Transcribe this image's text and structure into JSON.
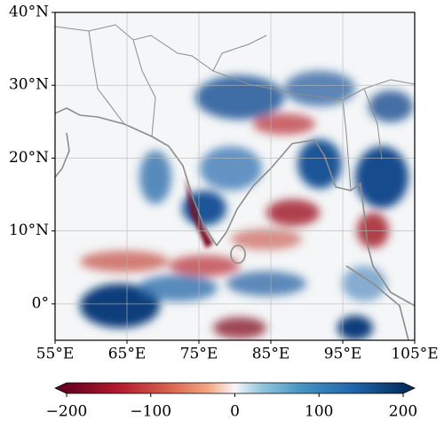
{
  "map": {
    "xlim": [
      55,
      105
    ],
    "ylim": [
      -5,
      40
    ],
    "xticks": [
      {
        "value": 55,
        "label": "55°E"
      },
      {
        "value": 65,
        "label": "65°E"
      },
      {
        "value": 75,
        "label": "75°E"
      },
      {
        "value": 85,
        "label": "85°E"
      },
      {
        "value": 95,
        "label": "95°E"
      },
      {
        "value": 105,
        "label": "105°E"
      }
    ],
    "yticks": [
      {
        "value": 0,
        "label": "0°"
      },
      {
        "value": 10,
        "label": "10°N"
      },
      {
        "value": 20,
        "label": "20°N"
      },
      {
        "value": 30,
        "label": "30°N"
      },
      {
        "value": 40,
        "label": "40°N"
      }
    ],
    "grid": true,
    "colorbar": {
      "lim": [
        -200,
        200
      ],
      "ticks": [
        {
          "value": -200,
          "label": "−200"
        },
        {
          "value": -100,
          "label": "−100"
        },
        0,
        100,
        200
      ]
    }
  }
}
